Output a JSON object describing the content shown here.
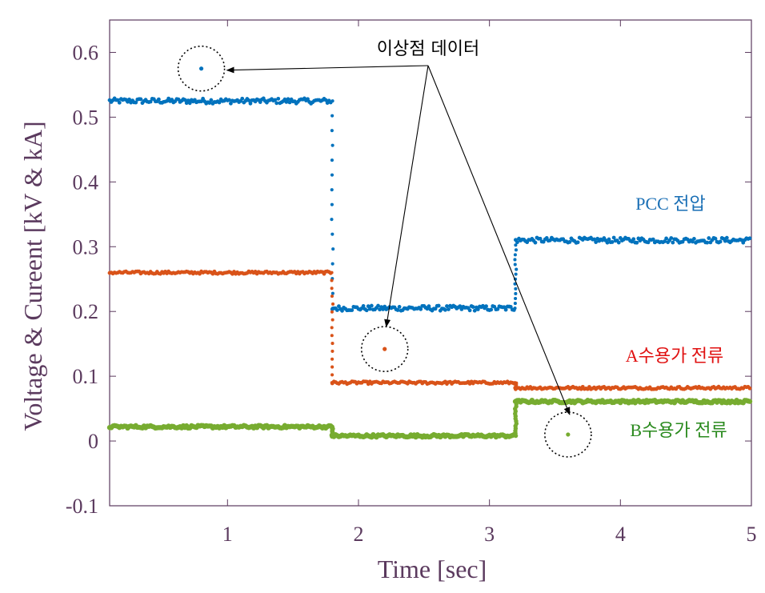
{
  "chart_data": {
    "type": "scatter",
    "xlabel": "Time [sec]",
    "ylabel": "Voltage & Cureent [kV & kA]",
    "xlim": [
      0.1,
      5.0
    ],
    "ylim": [
      -0.1,
      0.65
    ],
    "xticks": [
      1,
      2,
      3,
      4,
      5
    ],
    "xtick_labels": [
      "1",
      "2",
      "3",
      "4",
      "5"
    ],
    "yticks": [
      -0.1,
      0,
      0.1,
      0.2,
      0.3,
      0.4,
      0.5,
      0.6
    ],
    "ytick_labels": [
      "-0.1",
      "0",
      "0.1",
      "0.2",
      "0.3",
      "0.4",
      "0.5",
      "0.6"
    ],
    "grid": false,
    "series": [
      {
        "name": "PCC 전압",
        "color": "#0072BD",
        "segments": [
          {
            "x": [
              0.1,
              1.8
            ],
            "y": 0.525
          },
          {
            "x": [
              1.8,
              3.2
            ],
            "y": 0.205
          },
          {
            "x": [
              3.2,
              5.0
            ],
            "y": 0.31
          }
        ],
        "outlier": {
          "x": 0.8,
          "y": 0.575
        }
      },
      {
        "name": "A수용가 전류",
        "color": "#D95319",
        "segments": [
          {
            "x": [
              0.1,
              1.8
            ],
            "y": 0.26
          },
          {
            "x": [
              1.8,
              3.2
            ],
            "y": 0.09
          },
          {
            "x": [
              3.2,
              5.0
            ],
            "y": 0.082
          }
        ],
        "outlier": {
          "x": 2.2,
          "y": 0.142
        }
      },
      {
        "name": "B수용가 전류",
        "color": "#77AC30",
        "segments": [
          {
            "x": [
              0.1,
              1.8
            ],
            "y": 0.022
          },
          {
            "x": [
              1.8,
              3.2
            ],
            "y": 0.008
          },
          {
            "x": [
              3.2,
              5.0
            ],
            "y": 0.061
          }
        ],
        "outlier": {
          "x": 3.6,
          "y": 0.01
        }
      }
    ],
    "annotations": {
      "outlier_label": "이상점 데이터",
      "pcc_label": "PCC 전압",
      "a_label": "A수용가 전류",
      "b_label": "B수용가 전류",
      "pcc_color": "#1a6fb5",
      "a_color": "#e01010",
      "b_color": "#2a8a1e"
    }
  }
}
